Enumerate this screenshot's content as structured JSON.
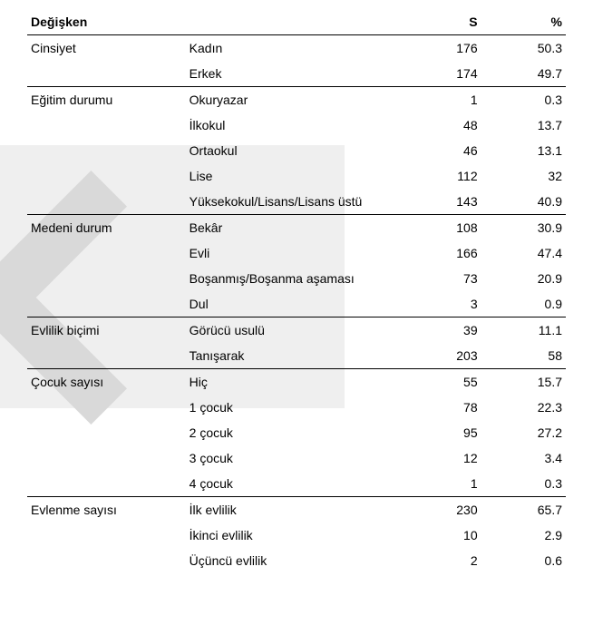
{
  "table": {
    "headers": {
      "variable": "Değişken",
      "s": "S",
      "percent": "%"
    },
    "sections": [
      {
        "variable": "Cinsiyet",
        "rows": [
          {
            "value": "Kadın",
            "s": "176",
            "percent": "50.3"
          },
          {
            "value": "Erkek",
            "s": "174",
            "percent": "49.7"
          }
        ]
      },
      {
        "variable": "Eğitim durumu",
        "rows": [
          {
            "value": "Okuryazar",
            "s": "1",
            "percent": "0.3"
          },
          {
            "value": "İlkokul",
            "s": "48",
            "percent": "13.7"
          },
          {
            "value": "Ortaokul",
            "s": "46",
            "percent": "13.1"
          },
          {
            "value": "Lise",
            "s": "112",
            "percent": "32"
          },
          {
            "value": "Yüksekokul/Lisans/Lisans üstü",
            "s": "143",
            "percent": "40.9"
          }
        ]
      },
      {
        "variable": "Medeni durum",
        "rows": [
          {
            "value": "Bekâr",
            "s": "108",
            "percent": "30.9"
          },
          {
            "value": "Evli",
            "s": "166",
            "percent": "47.4"
          },
          {
            "value": "Boşanmış/Boşanma aşaması",
            "s": "73",
            "percent": "20.9"
          },
          {
            "value": "Dul",
            "s": "3",
            "percent": "0.9"
          }
        ]
      },
      {
        "variable": "Evlilik biçimi",
        "rows": [
          {
            "value": "Görücü usulü",
            "s": "39",
            "percent": "11.1"
          },
          {
            "value": "Tanışarak",
            "s": "203",
            "percent": "58"
          }
        ]
      },
      {
        "variable": "Çocuk sayısı",
        "rows": [
          {
            "value": "Hiç",
            "s": "55",
            "percent": "15.7"
          },
          {
            "value": "1 çocuk",
            "s": "78",
            "percent": "22.3"
          },
          {
            "value": "2 çocuk",
            "s": "95",
            "percent": "27.2"
          },
          {
            "value": "3 çocuk",
            "s": "12",
            "percent": "3.4"
          },
          {
            "value": "4 çocuk",
            "s": "1",
            "percent": "0.3"
          }
        ]
      },
      {
        "variable": "Evlenme sayısı",
        "rows": [
          {
            "value": "İlk evlilik",
            "s": "230",
            "percent": "65.7"
          },
          {
            "value": "İkinci evlilik",
            "s": "10",
            "percent": "2.9"
          },
          {
            "value": "Üçüncü evlilik",
            "s": "2",
            "percent": "0.6"
          }
        ]
      }
    ]
  },
  "watermark": {
    "shade_color": "#e8e8e8",
    "bar_color": "#d9d9d9"
  }
}
